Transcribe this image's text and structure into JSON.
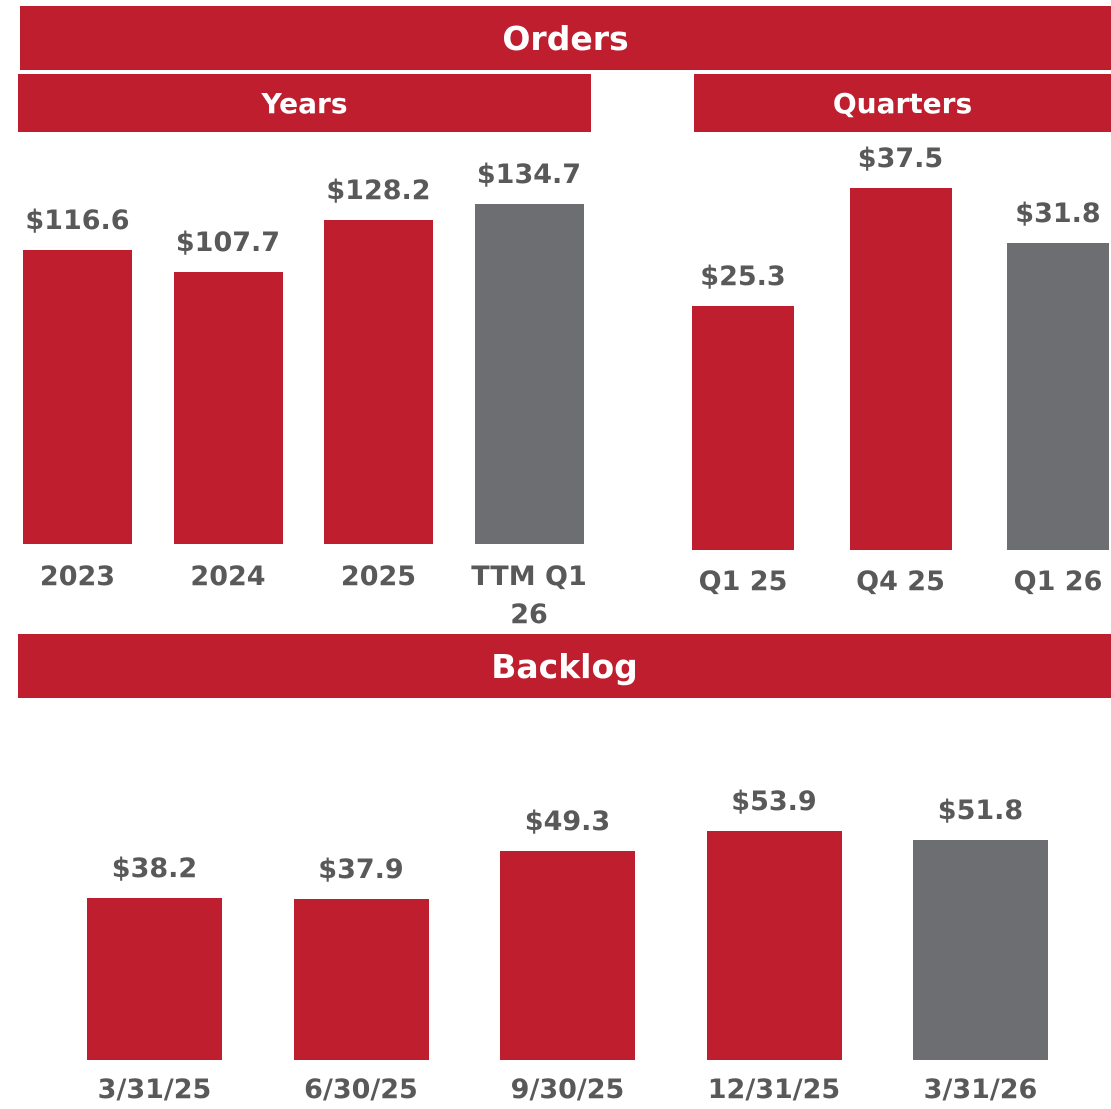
{
  "headers": {
    "orders": "Orders",
    "backlog": "Backlog"
  },
  "chart_data": [
    {
      "type": "bar",
      "title": "Years",
      "categories": [
        "2023",
        "2024",
        "2025",
        "TTM Q1 26"
      ],
      "values": [
        116.6,
        107.7,
        128.2,
        134.7
      ],
      "value_labels": [
        "$116.6",
        "$107.7",
        "$128.2",
        "$134.7"
      ],
      "colors": [
        "#be1e2d",
        "#be1e2d",
        "#be1e2d",
        "#6d6e71"
      ]
    },
    {
      "type": "bar",
      "title": "Quarters",
      "categories": [
        "Q1 25",
        "Q4 25",
        "Q1 26"
      ],
      "values": [
        25.3,
        37.5,
        31.8
      ],
      "value_labels": [
        "$25.3",
        "$37.5",
        "$31.8"
      ],
      "colors": [
        "#be1e2d",
        "#be1e2d",
        "#6d6e71"
      ]
    },
    {
      "type": "bar",
      "categories": [
        "3/31/25",
        "6/30/25",
        "9/30/25",
        "12/31/25",
        "3/31/26"
      ],
      "values": [
        38.2,
        37.9,
        49.3,
        53.9,
        51.8
      ],
      "value_labels": [
        "$38.2",
        "$37.9",
        "$49.3",
        "$53.9",
        "$51.8"
      ],
      "colors": [
        "#be1e2d",
        "#be1e2d",
        "#be1e2d",
        "#be1e2d",
        "#6d6e71"
      ]
    }
  ]
}
